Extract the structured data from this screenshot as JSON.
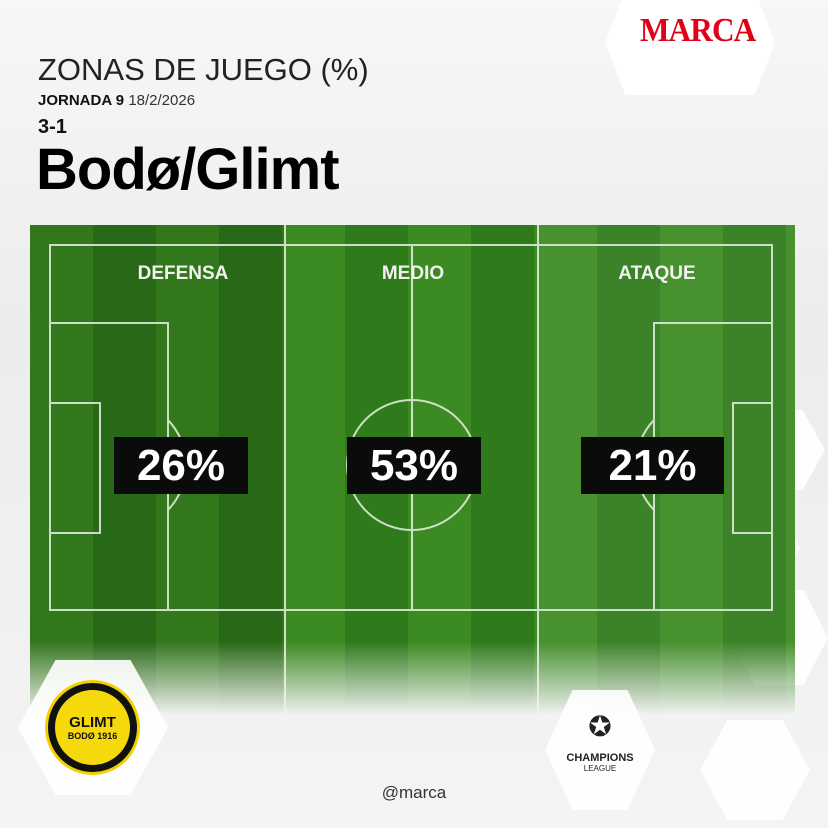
{
  "brand": {
    "logo_text": "MARCA",
    "color": "#e1001a"
  },
  "header": {
    "title": "ZONAS DE JUEGO (%)",
    "round": "JORNADA 9",
    "date": "18/2/2026",
    "score": "3-1",
    "team": "Bodø/Glimt"
  },
  "zones": [
    {
      "label": "DEFENSA",
      "percent": "26%"
    },
    {
      "label": "MEDIO",
      "percent": "53%"
    },
    {
      "label": "ATAQUE",
      "percent": "21%"
    }
  ],
  "club_badge": {
    "text_top": "GLIMT",
    "text_bottom": "BODØ 1916",
    "color": "#f5d90a"
  },
  "competition": {
    "line1": "CHAMPIONS",
    "line2": "LEAGUE"
  },
  "footer": {
    "handle": "@marca"
  }
}
